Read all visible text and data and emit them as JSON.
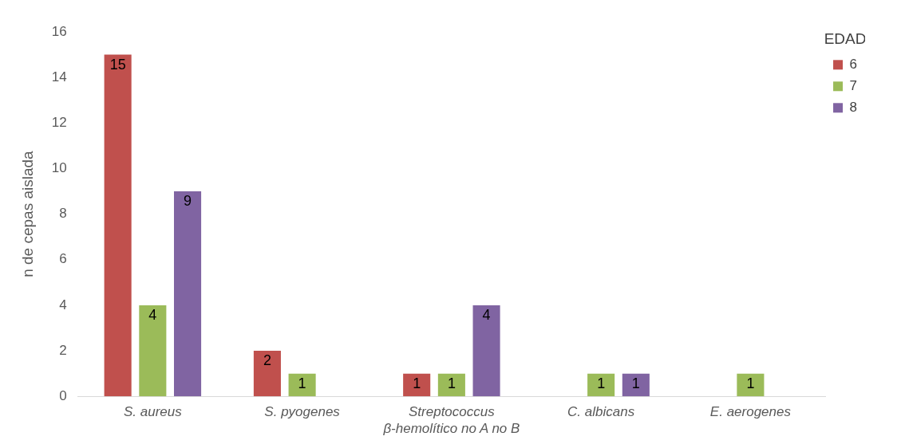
{
  "chart_data": {
    "type": "bar",
    "ylabel": "n de cepas aislada",
    "legend_title": "EDAD",
    "categories": [
      "S. aureus",
      "S. pyogenes",
      "Streptococcus β-hemolítico no A no B",
      "C. albicans",
      "E. aerogenes"
    ],
    "series": [
      {
        "name": "6",
        "color": "#c0504d",
        "values": [
          15,
          2,
          1,
          null,
          null
        ]
      },
      {
        "name": "7",
        "color": "#9bbb59",
        "values": [
          4,
          1,
          1,
          1,
          1
        ]
      },
      {
        "name": "8",
        "color": "#8064a2",
        "values": [
          9,
          null,
          4,
          1,
          null
        ]
      }
    ],
    "ylim": [
      0,
      16
    ],
    "yticks": [
      0,
      2,
      4,
      6,
      8,
      10,
      12,
      14,
      16
    ],
    "grid": false,
    "legend": "top right",
    "data_labels": true
  }
}
